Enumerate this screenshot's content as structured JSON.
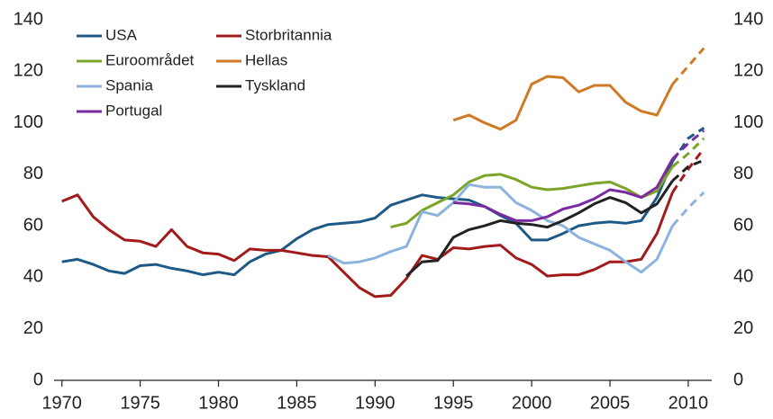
{
  "chart_data": {
    "type": "line",
    "x": [
      1970,
      1971,
      1972,
      1973,
      1974,
      1975,
      1976,
      1977,
      1978,
      1979,
      1980,
      1981,
      1982,
      1983,
      1984,
      1985,
      1986,
      1987,
      1988,
      1989,
      1990,
      1991,
      1992,
      1993,
      1994,
      1995,
      1996,
      1997,
      1998,
      1999,
      2000,
      2001,
      2002,
      2003,
      2004,
      2005,
      2006,
      2007,
      2008,
      2009,
      2010,
      2011
    ],
    "dash_from_x": 2009,
    "series": [
      {
        "name": "USA",
        "color": "#1f5a87",
        "values": [
          46,
          47,
          45,
          42.5,
          41.5,
          44.5,
          45,
          43.5,
          42.5,
          41,
          42,
          41,
          46,
          49,
          50.5,
          55,
          58.5,
          60.5,
          61,
          61.5,
          63,
          68,
          70,
          72,
          71,
          70.5,
          70,
          67.5,
          64,
          61,
          54.5,
          54.5,
          57,
          60,
          61,
          61.5,
          61,
          62,
          71,
          85,
          94,
          98
        ]
      },
      {
        "name": "Storbritannia",
        "color": "#a21a1a",
        "values": [
          69.5,
          72,
          63.5,
          58.5,
          54.5,
          54,
          52,
          58.5,
          52,
          49.5,
          49,
          46.5,
          51,
          50.5,
          50.5,
          49.5,
          48.5,
          48,
          42,
          36,
          32.5,
          33,
          39.5,
          48.5,
          47,
          51.5,
          51,
          52,
          52.5,
          47.5,
          45,
          40.5,
          41,
          41,
          43,
          46,
          46,
          47,
          57,
          73,
          82,
          90
        ]
      },
      {
        "name": "Euroområdet",
        "color": "#7ba428",
        "values": [
          null,
          null,
          null,
          null,
          null,
          null,
          null,
          null,
          null,
          null,
          null,
          null,
          null,
          null,
          null,
          null,
          null,
          null,
          null,
          null,
          null,
          59.5,
          61,
          66,
          69,
          72,
          77,
          79.5,
          80,
          78,
          75,
          74,
          74.5,
          75.5,
          76.5,
          77,
          74.5,
          71,
          73.5,
          83,
          88,
          94
        ]
      },
      {
        "name": "Hellas",
        "color": "#d07a25",
        "values": [
          null,
          null,
          null,
          null,
          null,
          null,
          null,
          null,
          null,
          null,
          null,
          null,
          null,
          null,
          null,
          null,
          null,
          null,
          null,
          null,
          null,
          null,
          null,
          null,
          null,
          101,
          103,
          100,
          97.5,
          101,
          115,
          118,
          117.5,
          112,
          114.5,
          114.5,
          108,
          104.5,
          103,
          115,
          122,
          129
        ]
      },
      {
        "name": "Spania",
        "color": "#8cb3de",
        "values": [
          null,
          null,
          null,
          null,
          null,
          null,
          null,
          null,
          null,
          null,
          null,
          null,
          null,
          null,
          null,
          null,
          null,
          48.5,
          45.5,
          46,
          47.5,
          50,
          52,
          65.5,
          64,
          69,
          76,
          75,
          75,
          69,
          66,
          62,
          60,
          55.5,
          53,
          50.5,
          46,
          42,
          47,
          60,
          67,
          73
        ]
      },
      {
        "name": "Tyskland",
        "color": "#222222",
        "values": [
          null,
          null,
          null,
          null,
          null,
          null,
          null,
          null,
          null,
          null,
          null,
          null,
          null,
          null,
          null,
          null,
          null,
          null,
          null,
          null,
          null,
          null,
          40.5,
          46,
          46.5,
          55.5,
          58.5,
          60,
          62,
          61,
          60.5,
          59.5,
          62,
          65,
          68.5,
          71,
          69,
          65,
          68.5,
          77.5,
          83,
          85.5
        ]
      },
      {
        "name": "Portugal",
        "color": "#7b2aa0",
        "values": [
          null,
          null,
          null,
          null,
          null,
          null,
          null,
          null,
          null,
          null,
          null,
          null,
          null,
          null,
          null,
          null,
          null,
          null,
          null,
          null,
          null,
          null,
          null,
          null,
          null,
          69,
          68.5,
          67.5,
          64.5,
          62,
          62,
          63.5,
          66.5,
          68,
          70.5,
          74,
          73,
          71,
          75,
          86,
          92,
          97
        ]
      }
    ],
    "xlim": [
      1969.5,
      2011.5
    ],
    "xticks": [
      1970,
      1975,
      1980,
      1985,
      1990,
      1995,
      2000,
      2005,
      2010
    ],
    "ylim": [
      0,
      140
    ],
    "yticks": [
      0,
      20,
      40,
      60,
      80,
      100,
      120,
      140
    ],
    "y2lim": [
      0,
      140
    ],
    "y2ticks": [
      0,
      20,
      40,
      60,
      80,
      100,
      120,
      140
    ],
    "legend": "upper-left"
  }
}
